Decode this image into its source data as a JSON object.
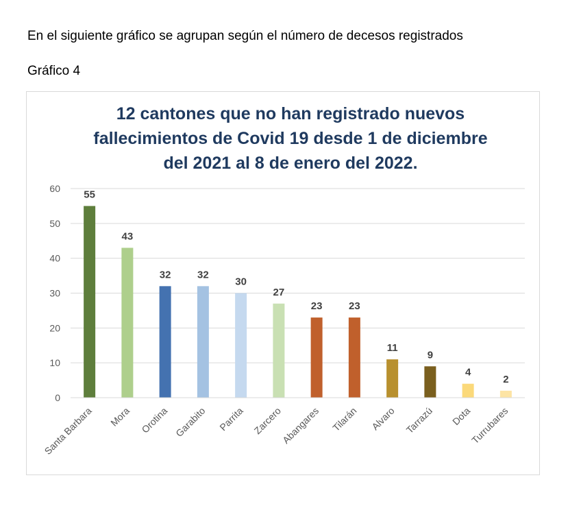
{
  "intro_text": "En el siguiente gráfico se agrupan según el número de decesos registrados",
  "caption": "Gráfico 4",
  "chart_data": {
    "type": "bar",
    "title_lines": [
      "12 cantones que no han registrado nuevos",
      "fallecimientos de Covid 19 desde 1 de diciembre",
      "del 2021 al 8 de enero del 2022."
    ],
    "categories": [
      "Santa Barbara",
      "Mora",
      "Orotina",
      "Garabito",
      "Parrita",
      "Zarcero",
      "Abangares",
      "Tilarán",
      "Alvaro",
      "Tarrazú",
      "Dota",
      "Turrubares"
    ],
    "values": [
      55,
      43,
      32,
      32,
      30,
      27,
      23,
      23,
      11,
      9,
      4,
      2
    ],
    "colors": [
      "#5e7e3c",
      "#aecf8c",
      "#4472b0",
      "#a4c2e2",
      "#c5d9ef",
      "#c9e0b3",
      "#c0602c",
      "#c0602c",
      "#b8902e",
      "#7a5f1e",
      "#fbd97a",
      "#fde4a4"
    ],
    "ylim": [
      0,
      60
    ],
    "yticks": [
      0,
      10,
      20,
      30,
      40,
      50,
      60
    ],
    "grid": true,
    "legend": "none"
  }
}
